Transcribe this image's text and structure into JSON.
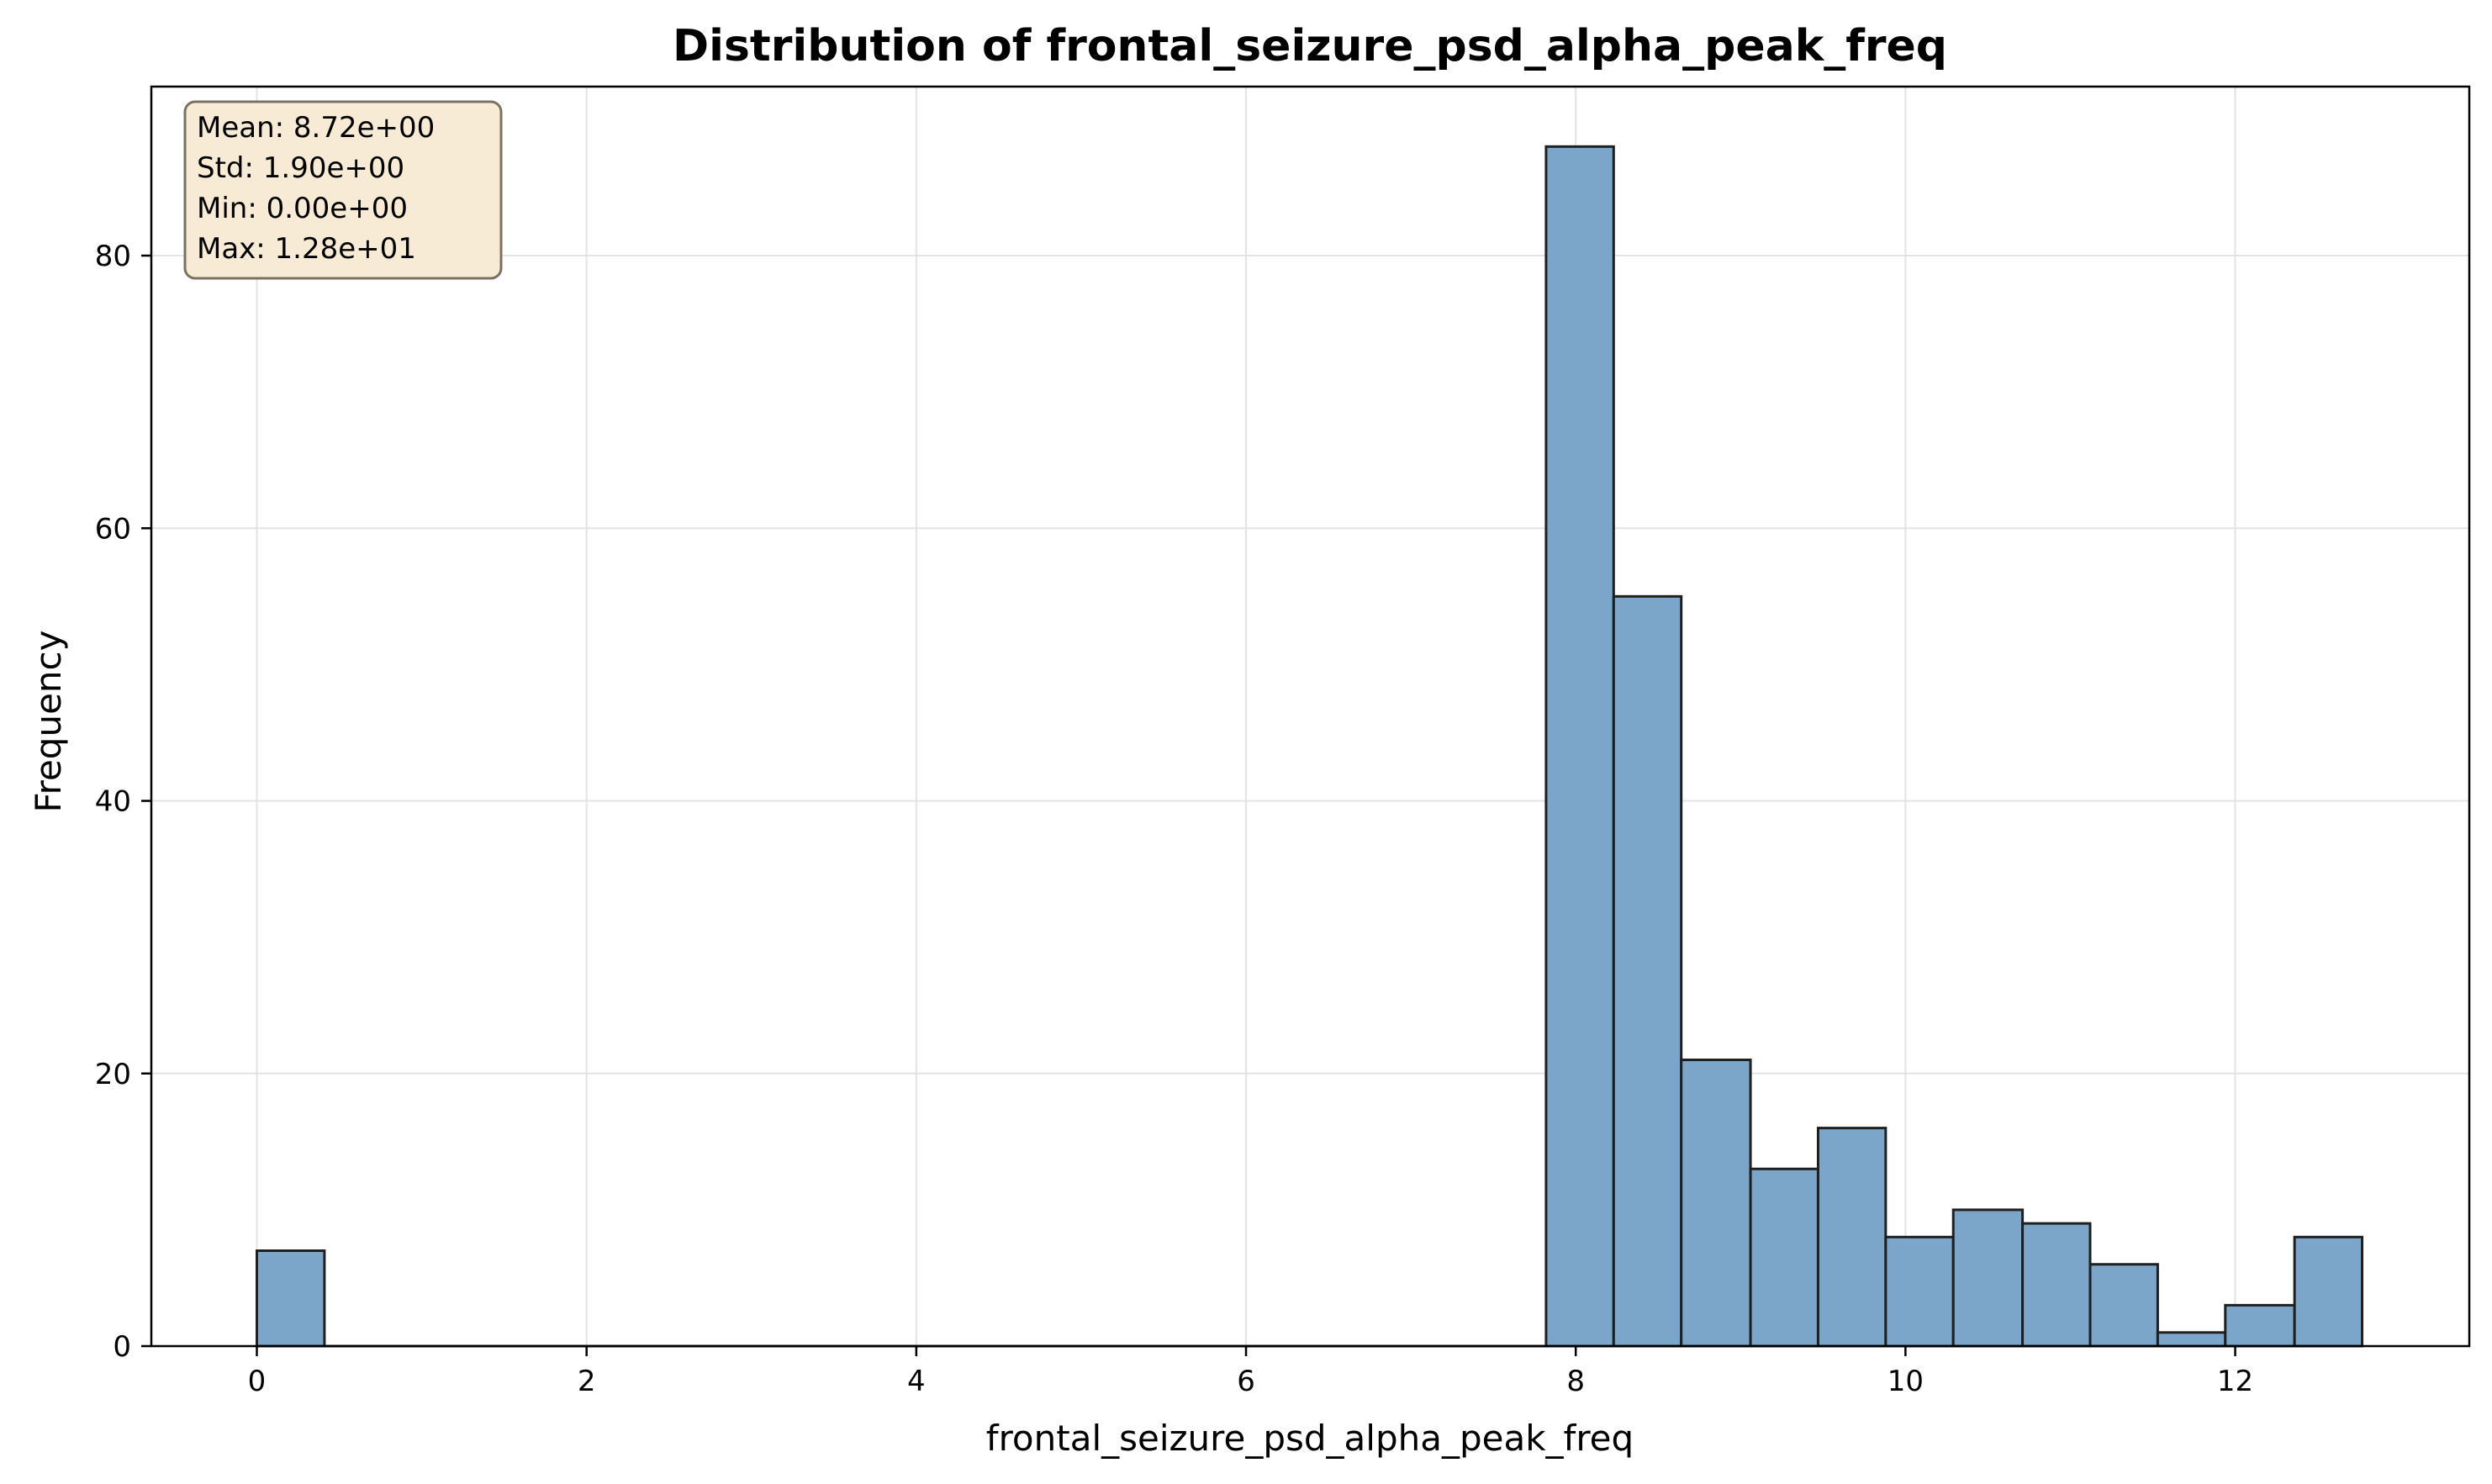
{
  "chart_data": {
    "type": "bar",
    "title": "Distribution of frontal_seizure_psd_alpha_peak_freq",
    "xlabel": "frontal_seizure_psd_alpha_peak_freq",
    "ylabel": "Frequency",
    "xlim": [
      -0.64,
      13.42
    ],
    "ylim": [
      0,
      92.4
    ],
    "xticks": [
      0,
      2,
      4,
      6,
      8,
      10,
      12
    ],
    "yticks": [
      0,
      20,
      40,
      60,
      80
    ],
    "grid": true,
    "bar_color": "#7ba6ca",
    "bar_edge_color": "#1f1f1f",
    "bins": [
      {
        "x0": 0.0,
        "x1": 0.41,
        "count": 7
      },
      {
        "x0": 7.82,
        "x1": 8.23,
        "count": 88
      },
      {
        "x0": 8.23,
        "x1": 8.64,
        "count": 55
      },
      {
        "x0": 8.64,
        "x1": 9.06,
        "count": 21
      },
      {
        "x0": 9.06,
        "x1": 9.47,
        "count": 13
      },
      {
        "x0": 9.47,
        "x1": 9.88,
        "count": 16
      },
      {
        "x0": 9.88,
        "x1": 10.29,
        "count": 8
      },
      {
        "x0": 10.29,
        "x1": 10.71,
        "count": 10
      },
      {
        "x0": 10.71,
        "x1": 11.12,
        "count": 9
      },
      {
        "x0": 11.12,
        "x1": 11.53,
        "count": 6
      },
      {
        "x0": 11.53,
        "x1": 11.94,
        "count": 1
      },
      {
        "x0": 11.94,
        "x1": 12.36,
        "count": 3
      },
      {
        "x0": 12.36,
        "x1": 12.77,
        "count": 8
      }
    ],
    "stats_box": {
      "lines": [
        "Mean: 8.72e+00",
        "Std: 1.90e+00",
        "Min: 0.00e+00",
        "Max: 1.28e+01"
      ],
      "background": "#f8ebd6",
      "border": "#7a7163",
      "placement": "top-left"
    }
  }
}
